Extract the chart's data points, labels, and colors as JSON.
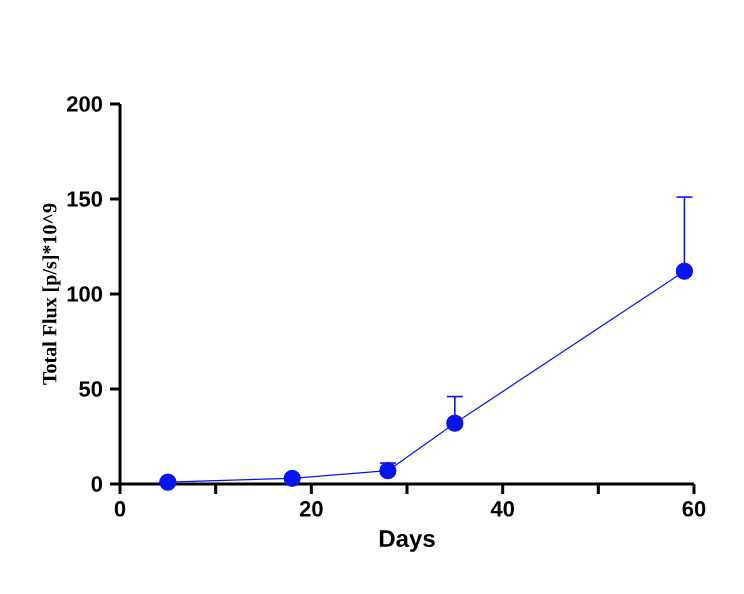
{
  "chart_data": {
    "type": "line",
    "xlabel": "Days",
    "ylabel": "Total Flux [p/s]*10^9",
    "x": [
      5,
      18,
      28,
      35,
      59
    ],
    "series": [
      {
        "color": "#0a14f0",
        "values": [
          1,
          3,
          7,
          32,
          112
        ],
        "errors": [
          null,
          null,
          [
            7,
            11
          ],
          [
            32,
            46
          ],
          [
            112,
            151
          ]
        ]
      }
    ],
    "xlim": [
      0,
      60
    ],
    "xticks": [
      0,
      {
        "value": 10,
        "label": null
      },
      20,
      {
        "value": 30,
        "label": null
      },
      40,
      {
        "value": 50,
        "label": null
      },
      60
    ],
    "ylim": [
      0,
      200
    ],
    "yticks": [
      0,
      50,
      100,
      150,
      200
    ],
    "grid": false,
    "marker": "circle",
    "line_style": "solid"
  }
}
